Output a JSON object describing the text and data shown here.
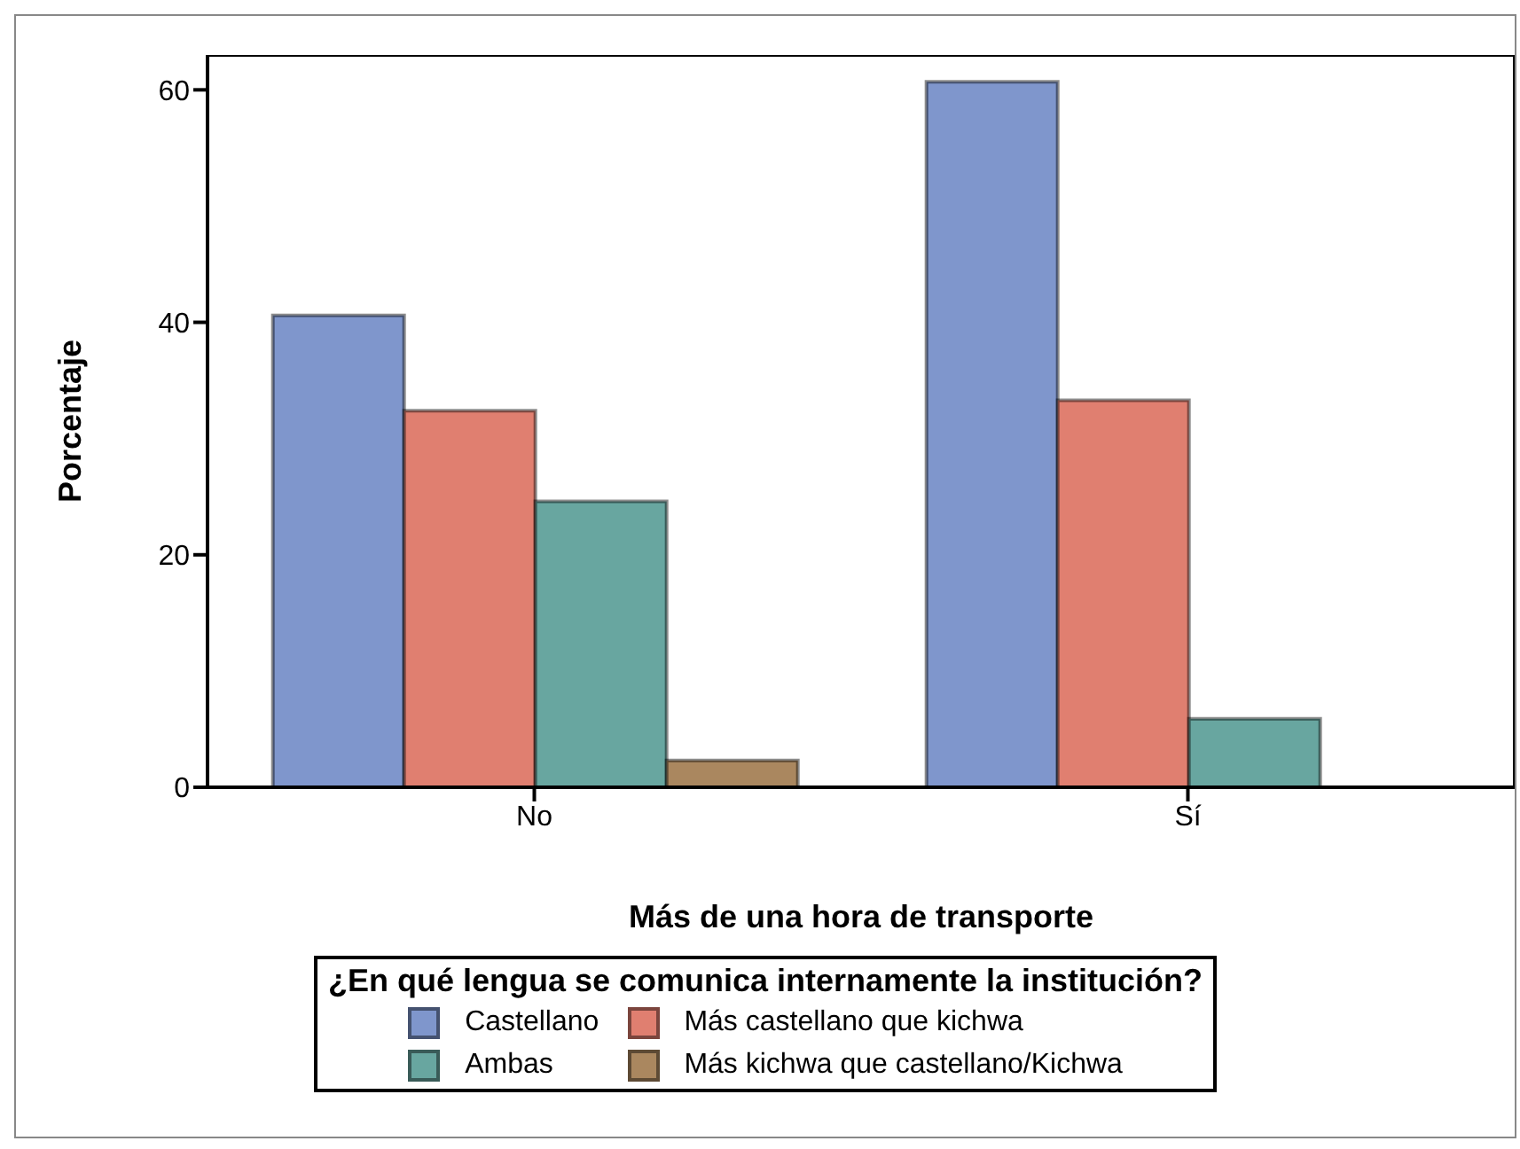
{
  "chart_data": {
    "type": "bar",
    "xlabel": "Más de una hora de transporte",
    "ylabel": "Porcentaje",
    "legend_title": "¿En qué lengua se comunica internamente la institución?",
    "categories": [
      "No",
      "Sí"
    ],
    "series": [
      {
        "name": "Castellano",
        "color": "#7f96cc",
        "values": [
          40.6,
          60.7
        ]
      },
      {
        "name": "Más castellano que kichwa",
        "color": "#e07f70",
        "values": [
          32.4,
          33.3
        ]
      },
      {
        "name": "Ambas",
        "color": "#68a6a0",
        "values": [
          24.6,
          5.9
        ]
      },
      {
        "name": "Más kichwa que castellano/Kichwa",
        "color": "#aa875f",
        "values": [
          2.3,
          null
        ]
      }
    ],
    "ylim": [
      0,
      63
    ],
    "yticks": [
      0,
      20,
      40,
      60
    ],
    "grid": false,
    "legend": "bottom"
  }
}
